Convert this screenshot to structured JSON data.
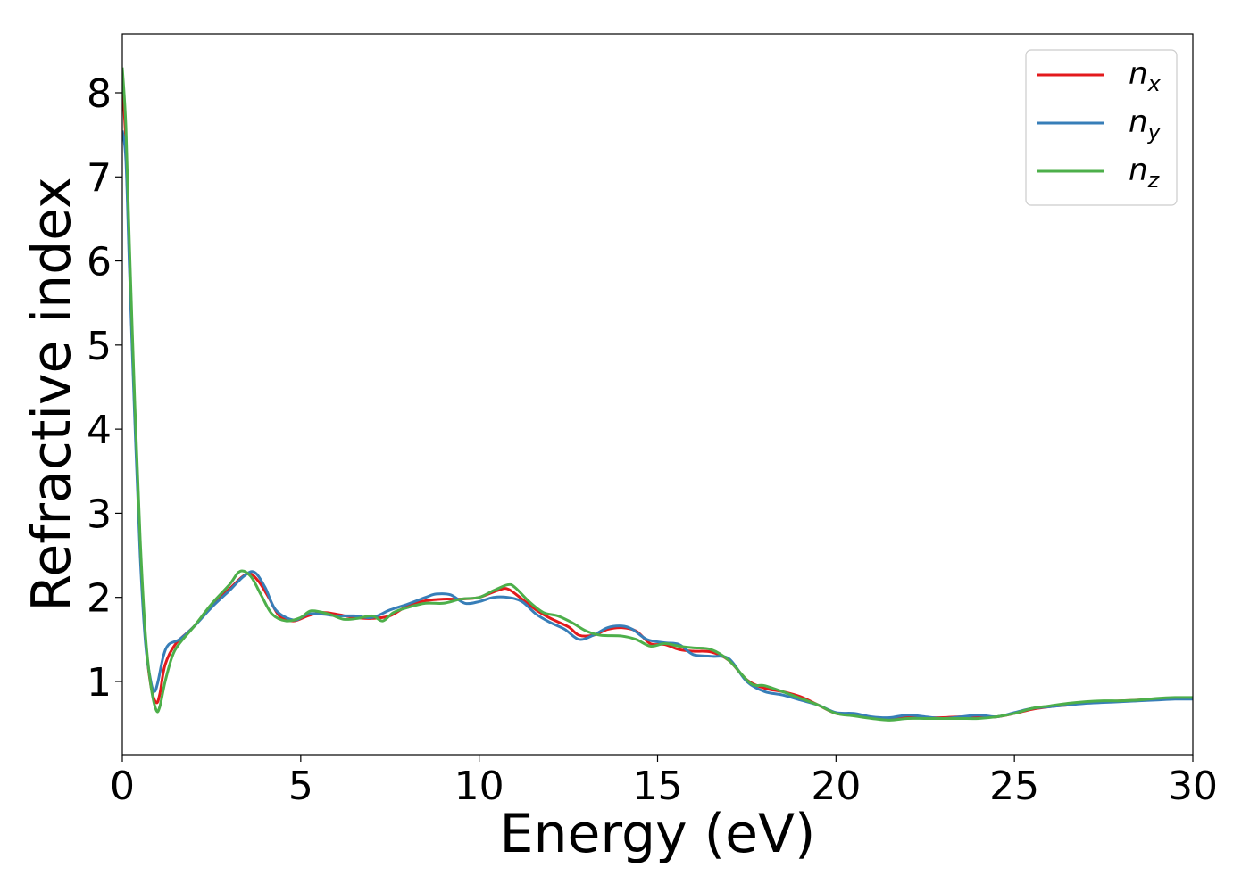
{
  "chart_data": {
    "type": "line",
    "xlabel": "Energy (eV)",
    "ylabel": "Refractive index",
    "xlim": [
      0,
      30
    ],
    "ylim": [
      0.13,
      8.7
    ],
    "x_ticks": [
      "0",
      "5",
      "10",
      "15",
      "20",
      "25",
      "30"
    ],
    "y_ticks": [
      "1",
      "2",
      "3",
      "4",
      "5",
      "6",
      "7",
      "8"
    ],
    "grid": false,
    "legend_position": "top-right",
    "series": [
      {
        "name": "n",
        "subscript": "x",
        "color": "#e31a1c",
        "points": [
          [
            0,
            8.1
          ],
          [
            0.1,
            7.4
          ],
          [
            0.2,
            6.0
          ],
          [
            0.35,
            4.2
          ],
          [
            0.5,
            2.6
          ],
          [
            0.65,
            1.5
          ],
          [
            0.8,
            0.95
          ],
          [
            0.95,
            0.75
          ],
          [
            1.05,
            0.85
          ],
          [
            1.2,
            1.2
          ],
          [
            1.5,
            1.45
          ],
          [
            2.0,
            1.65
          ],
          [
            2.5,
            1.9
          ],
          [
            3.0,
            2.1
          ],
          [
            3.5,
            2.28
          ],
          [
            3.8,
            2.2
          ],
          [
            4.1,
            2.0
          ],
          [
            4.4,
            1.78
          ],
          [
            4.8,
            1.72
          ],
          [
            5.2,
            1.78
          ],
          [
            5.6,
            1.82
          ],
          [
            6.0,
            1.8
          ],
          [
            6.5,
            1.76
          ],
          [
            7.0,
            1.75
          ],
          [
            7.5,
            1.78
          ],
          [
            8.0,
            1.9
          ],
          [
            8.5,
            1.96
          ],
          [
            9.0,
            1.98
          ],
          [
            9.5,
            1.98
          ],
          [
            10.0,
            2.0
          ],
          [
            10.5,
            2.08
          ],
          [
            10.8,
            2.1
          ],
          [
            11.2,
            1.98
          ],
          [
            11.6,
            1.85
          ],
          [
            12.0,
            1.75
          ],
          [
            12.5,
            1.65
          ],
          [
            12.8,
            1.55
          ],
          [
            13.2,
            1.55
          ],
          [
            13.6,
            1.62
          ],
          [
            14.0,
            1.64
          ],
          [
            14.4,
            1.6
          ],
          [
            14.8,
            1.45
          ],
          [
            15.2,
            1.44
          ],
          [
            15.6,
            1.38
          ],
          [
            16.0,
            1.36
          ],
          [
            16.5,
            1.35
          ],
          [
            17.0,
            1.25
          ],
          [
            17.5,
            1.02
          ],
          [
            18.0,
            0.92
          ],
          [
            18.5,
            0.88
          ],
          [
            19.0,
            0.82
          ],
          [
            19.5,
            0.72
          ],
          [
            20.0,
            0.62
          ],
          [
            20.5,
            0.6
          ],
          [
            21.0,
            0.57
          ],
          [
            21.5,
            0.56
          ],
          [
            22.0,
            0.58
          ],
          [
            22.5,
            0.57
          ],
          [
            23.0,
            0.57
          ],
          [
            23.5,
            0.58
          ],
          [
            24.0,
            0.58
          ],
          [
            24.5,
            0.58
          ],
          [
            25.0,
            0.62
          ],
          [
            25.5,
            0.67
          ],
          [
            26.0,
            0.7
          ],
          [
            26.5,
            0.72
          ],
          [
            27.0,
            0.75
          ],
          [
            27.5,
            0.76
          ],
          [
            28.0,
            0.77
          ],
          [
            28.5,
            0.78
          ],
          [
            29.0,
            0.79
          ],
          [
            29.5,
            0.8
          ],
          [
            30.0,
            0.8
          ]
        ]
      },
      {
        "name": "n",
        "subscript": "y",
        "color": "#377eb8",
        "points": [
          [
            0,
            7.55
          ],
          [
            0.1,
            7.2
          ],
          [
            0.2,
            5.9
          ],
          [
            0.35,
            4.1
          ],
          [
            0.5,
            2.5
          ],
          [
            0.65,
            1.45
          ],
          [
            0.8,
            1.0
          ],
          [
            0.9,
            0.88
          ],
          [
            1.0,
            1.0
          ],
          [
            1.15,
            1.3
          ],
          [
            1.3,
            1.44
          ],
          [
            1.6,
            1.5
          ],
          [
            2.0,
            1.65
          ],
          [
            2.5,
            1.88
          ],
          [
            3.0,
            2.08
          ],
          [
            3.4,
            2.25
          ],
          [
            3.7,
            2.3
          ],
          [
            4.0,
            2.12
          ],
          [
            4.3,
            1.85
          ],
          [
            4.8,
            1.73
          ],
          [
            5.2,
            1.8
          ],
          [
            5.6,
            1.8
          ],
          [
            6.0,
            1.78
          ],
          [
            6.5,
            1.78
          ],
          [
            7.0,
            1.76
          ],
          [
            7.5,
            1.85
          ],
          [
            8.0,
            1.92
          ],
          [
            8.5,
            2.0
          ],
          [
            8.8,
            2.04
          ],
          [
            9.2,
            2.03
          ],
          [
            9.6,
            1.93
          ],
          [
            10.0,
            1.95
          ],
          [
            10.4,
            2.0
          ],
          [
            10.8,
            2.0
          ],
          [
            11.2,
            1.95
          ],
          [
            11.6,
            1.8
          ],
          [
            12.0,
            1.7
          ],
          [
            12.4,
            1.62
          ],
          [
            12.8,
            1.5
          ],
          [
            13.2,
            1.55
          ],
          [
            13.6,
            1.64
          ],
          [
            14.0,
            1.66
          ],
          [
            14.3,
            1.62
          ],
          [
            14.7,
            1.5
          ],
          [
            15.2,
            1.46
          ],
          [
            15.6,
            1.44
          ],
          [
            16.0,
            1.32
          ],
          [
            16.5,
            1.3
          ],
          [
            17.0,
            1.27
          ],
          [
            17.5,
            1.0
          ],
          [
            18.0,
            0.88
          ],
          [
            18.5,
            0.84
          ],
          [
            19.0,
            0.78
          ],
          [
            19.5,
            0.72
          ],
          [
            20.0,
            0.63
          ],
          [
            20.5,
            0.62
          ],
          [
            21.0,
            0.58
          ],
          [
            21.5,
            0.57
          ],
          [
            22.0,
            0.6
          ],
          [
            22.5,
            0.58
          ],
          [
            23.0,
            0.56
          ],
          [
            23.5,
            0.58
          ],
          [
            24.0,
            0.6
          ],
          [
            24.5,
            0.58
          ],
          [
            25.0,
            0.63
          ],
          [
            25.5,
            0.68
          ],
          [
            26.0,
            0.7
          ],
          [
            26.5,
            0.72
          ],
          [
            27.0,
            0.74
          ],
          [
            27.5,
            0.75
          ],
          [
            28.0,
            0.76
          ],
          [
            28.5,
            0.77
          ],
          [
            29.0,
            0.78
          ],
          [
            29.5,
            0.79
          ],
          [
            30.0,
            0.79
          ]
        ]
      },
      {
        "name": "n",
        "subscript": "z",
        "color": "#4daf4a",
        "points": [
          [
            0,
            8.3
          ],
          [
            0.1,
            7.6
          ],
          [
            0.2,
            6.2
          ],
          [
            0.35,
            4.3
          ],
          [
            0.5,
            2.7
          ],
          [
            0.65,
            1.55
          ],
          [
            0.8,
            0.95
          ],
          [
            0.95,
            0.66
          ],
          [
            1.05,
            0.7
          ],
          [
            1.2,
            1.0
          ],
          [
            1.4,
            1.3
          ],
          [
            1.6,
            1.45
          ],
          [
            2.0,
            1.65
          ],
          [
            2.5,
            1.92
          ],
          [
            3.0,
            2.15
          ],
          [
            3.3,
            2.31
          ],
          [
            3.6,
            2.25
          ],
          [
            3.9,
            2.02
          ],
          [
            4.2,
            1.8
          ],
          [
            4.6,
            1.72
          ],
          [
            5.0,
            1.76
          ],
          [
            5.3,
            1.84
          ],
          [
            5.8,
            1.8
          ],
          [
            6.2,
            1.74
          ],
          [
            6.6,
            1.75
          ],
          [
            7.0,
            1.78
          ],
          [
            7.3,
            1.72
          ],
          [
            7.6,
            1.82
          ],
          [
            8.0,
            1.88
          ],
          [
            8.5,
            1.93
          ],
          [
            9.0,
            1.93
          ],
          [
            9.5,
            1.98
          ],
          [
            10.0,
            2.0
          ],
          [
            10.4,
            2.08
          ],
          [
            10.8,
            2.15
          ],
          [
            11.0,
            2.12
          ],
          [
            11.4,
            1.95
          ],
          [
            11.8,
            1.82
          ],
          [
            12.2,
            1.78
          ],
          [
            12.6,
            1.7
          ],
          [
            13.0,
            1.6
          ],
          [
            13.4,
            1.55
          ],
          [
            14.0,
            1.54
          ],
          [
            14.4,
            1.5
          ],
          [
            14.8,
            1.42
          ],
          [
            15.2,
            1.45
          ],
          [
            15.6,
            1.42
          ],
          [
            16.0,
            1.4
          ],
          [
            16.5,
            1.38
          ],
          [
            17.0,
            1.25
          ],
          [
            17.6,
            0.98
          ],
          [
            18.0,
            0.95
          ],
          [
            18.5,
            0.88
          ],
          [
            19.0,
            0.8
          ],
          [
            19.5,
            0.72
          ],
          [
            20.0,
            0.62
          ],
          [
            20.5,
            0.59
          ],
          [
            21.0,
            0.56
          ],
          [
            21.5,
            0.54
          ],
          [
            22.0,
            0.56
          ],
          [
            22.5,
            0.56
          ],
          [
            23.0,
            0.56
          ],
          [
            23.5,
            0.56
          ],
          [
            24.0,
            0.56
          ],
          [
            24.5,
            0.58
          ],
          [
            25.0,
            0.62
          ],
          [
            25.5,
            0.68
          ],
          [
            26.0,
            0.71
          ],
          [
            26.5,
            0.74
          ],
          [
            27.0,
            0.76
          ],
          [
            27.5,
            0.77
          ],
          [
            28.0,
            0.77
          ],
          [
            28.5,
            0.78
          ],
          [
            29.0,
            0.8
          ],
          [
            29.5,
            0.81
          ],
          [
            30.0,
            0.81
          ]
        ]
      }
    ]
  }
}
